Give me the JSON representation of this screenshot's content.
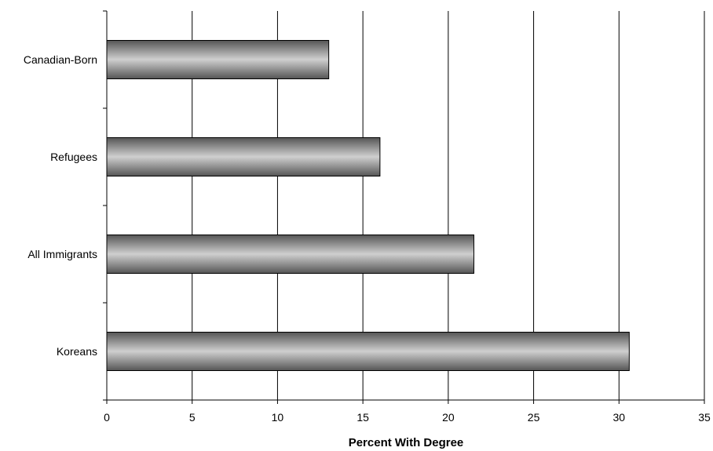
{
  "chart_data": {
    "type": "bar",
    "orientation": "horizontal",
    "title": "",
    "xlabel": "Percent With Degree",
    "ylabel": "",
    "categories": [
      "Canadian-Born",
      "Refugees",
      "All Immigrants",
      "Koreans"
    ],
    "values": [
      13,
      16,
      21.5,
      30.6
    ],
    "xlim": [
      0,
      35
    ],
    "xticks": [
      0,
      5,
      10,
      15,
      20,
      25,
      30,
      35
    ],
    "grid": "vertical",
    "legend": "none",
    "colors": {
      "bar_edge": "#000000",
      "bar_dark": "#555555",
      "bar_light": "#cfcfcf",
      "grid": "#000000"
    }
  }
}
